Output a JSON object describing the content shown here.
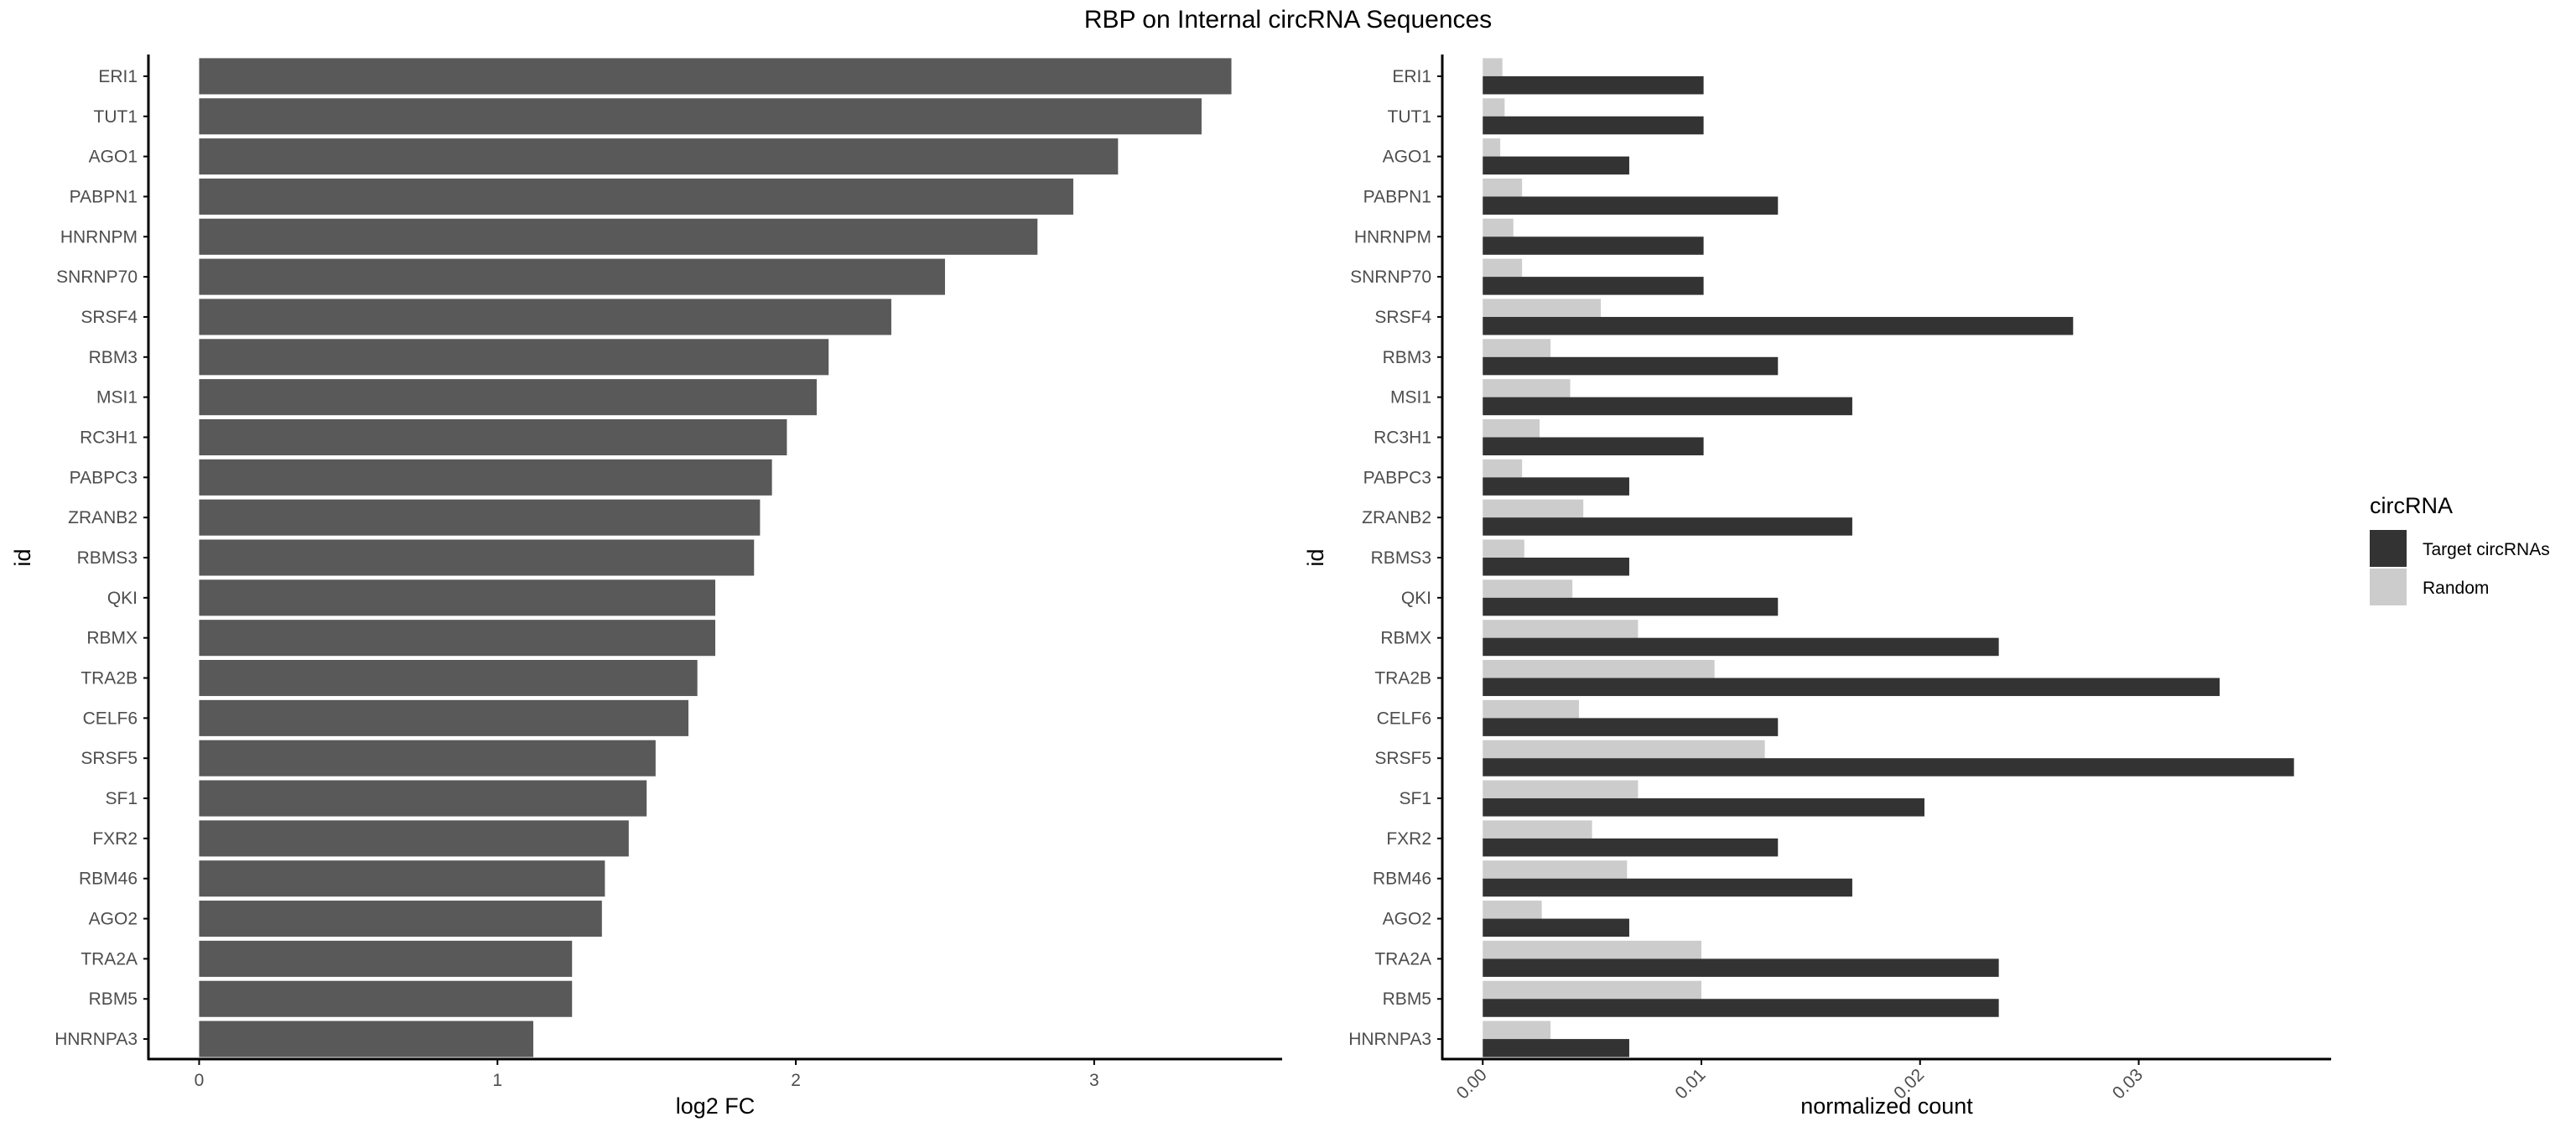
{
  "title": "RBP on Internal circRNA Sequences",
  "colors": {
    "left_bar": "#595959",
    "target": "#333333",
    "random": "#cccccc",
    "axis": "#000000",
    "tick_label": "#4d4d4d"
  },
  "chart_data": [
    {
      "type": "bar",
      "orientation": "horizontal",
      "ylabel": "id",
      "xlabel": "log2 FC",
      "xlim": [
        -0.17,
        3.63
      ],
      "xticks": [
        0,
        1,
        2,
        3
      ],
      "xtick_labels": [
        "0",
        "1",
        "2",
        "3"
      ],
      "grid": false,
      "categories": [
        "ERI1",
        "TUT1",
        "AGO1",
        "PABPN1",
        "HNRNPM",
        "SNRNP70",
        "SRSF4",
        "RBM3",
        "MSI1",
        "RC3H1",
        "PABPC3",
        "ZRANB2",
        "RBMS3",
        "QKI",
        "RBMX",
        "TRA2B",
        "CELF6",
        "SRSF5",
        "SF1",
        "FXR2",
        "RBM46",
        "AGO2",
        "TRA2A",
        "RBM5",
        "HNRNPA3"
      ],
      "values": [
        3.46,
        3.36,
        3.08,
        2.93,
        2.81,
        2.5,
        2.32,
        2.11,
        2.07,
        1.97,
        1.92,
        1.88,
        1.86,
        1.73,
        1.73,
        1.67,
        1.64,
        1.53,
        1.5,
        1.44,
        1.36,
        1.35,
        1.25,
        1.25,
        1.12
      ]
    },
    {
      "type": "bar",
      "orientation": "horizontal",
      "grouped": true,
      "ylabel": "id",
      "xlabel": "normalized count",
      "xlim": [
        -0.00185,
        0.0388
      ],
      "xticks": [
        0,
        0.01,
        0.02,
        0.03
      ],
      "xtick_labels": [
        "0.00",
        "0.01",
        "0.02",
        "0.03"
      ],
      "grid": false,
      "legend": {
        "title": "circRNA",
        "position": "right",
        "entries": [
          "Target circRNAs",
          "Random"
        ]
      },
      "categories": [
        "ERI1",
        "TUT1",
        "AGO1",
        "PABPN1",
        "HNRNPM",
        "SNRNP70",
        "SRSF4",
        "RBM3",
        "MSI1",
        "RC3H1",
        "PABPC3",
        "ZRANB2",
        "RBMS3",
        "QKI",
        "RBMX",
        "TRA2B",
        "CELF6",
        "SRSF5",
        "SF1",
        "FXR2",
        "RBM46",
        "AGO2",
        "TRA2A",
        "RBM5",
        "HNRNPA3"
      ],
      "series": [
        {
          "name": "Target circRNAs",
          "values": [
            0.0101,
            0.0101,
            0.0067,
            0.0135,
            0.0101,
            0.0101,
            0.027,
            0.0135,
            0.0169,
            0.0101,
            0.0067,
            0.0169,
            0.0067,
            0.0135,
            0.0236,
            0.0337,
            0.0135,
            0.0371,
            0.0202,
            0.0135,
            0.0169,
            0.0067,
            0.0236,
            0.0236,
            0.0067
          ]
        },
        {
          "name": "Random",
          "values": [
            0.0009,
            0.001,
            0.0008,
            0.0018,
            0.0014,
            0.0018,
            0.0054,
            0.0031,
            0.004,
            0.0026,
            0.0018,
            0.0046,
            0.0019,
            0.0041,
            0.0071,
            0.0106,
            0.0044,
            0.0129,
            0.0071,
            0.005,
            0.0066,
            0.0027,
            0.01,
            0.01,
            0.0031
          ]
        }
      ]
    }
  ]
}
